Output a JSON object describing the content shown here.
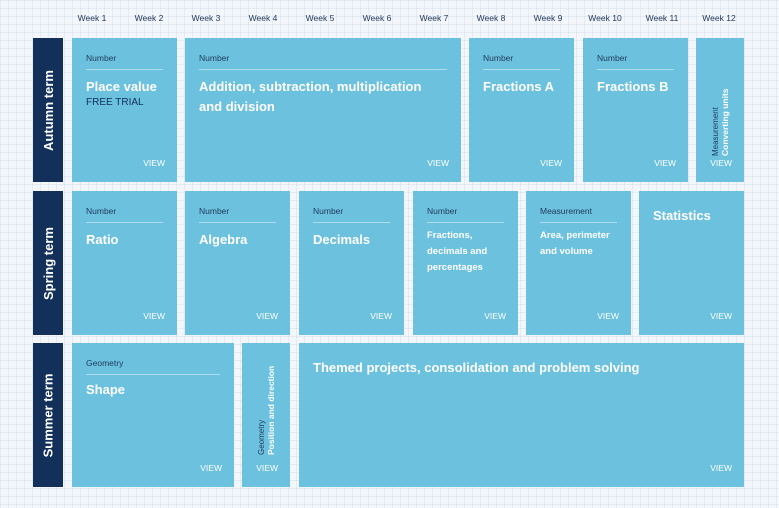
{
  "weeks": [
    "Week 1",
    "Week 2",
    "Week 3",
    "Week 4",
    "Week 5",
    "Week 6",
    "Week 7",
    "Week 8",
    "Week 9",
    "Week 10",
    "Week 11",
    "Week 12"
  ],
  "view_label": "VIEW",
  "terms": {
    "autumn": {
      "label": "Autumn term",
      "cards": [
        {
          "category": "Number",
          "title": "Place value",
          "subtitle": "FREE TRIAL"
        },
        {
          "category": "Number",
          "title": "Addition, subtraction, multiplication and division"
        },
        {
          "category": "Number",
          "title": "Fractions A"
        },
        {
          "category": "Number",
          "title": "Fractions B"
        },
        {
          "category": "Measurement",
          "title": "Converting units"
        }
      ]
    },
    "spring": {
      "label": "Spring term",
      "cards": [
        {
          "category": "Number",
          "title": "Ratio"
        },
        {
          "category": "Number",
          "title": "Algebra"
        },
        {
          "category": "Number",
          "title": "Decimals"
        },
        {
          "category": "Number",
          "title": "Fractions, decimals and percentages"
        },
        {
          "category": "Measurement",
          "title": "Area, perimeter and volume"
        },
        {
          "category": "",
          "title": "Statistics"
        }
      ]
    },
    "summer": {
      "label": "Summer term",
      "cards": [
        {
          "category": "Geometry",
          "title": "Shape"
        },
        {
          "category": "Geometry",
          "title": "Position and direction"
        },
        {
          "category": "",
          "title": "Themed projects, consolidation and problem solving"
        }
      ]
    }
  }
}
